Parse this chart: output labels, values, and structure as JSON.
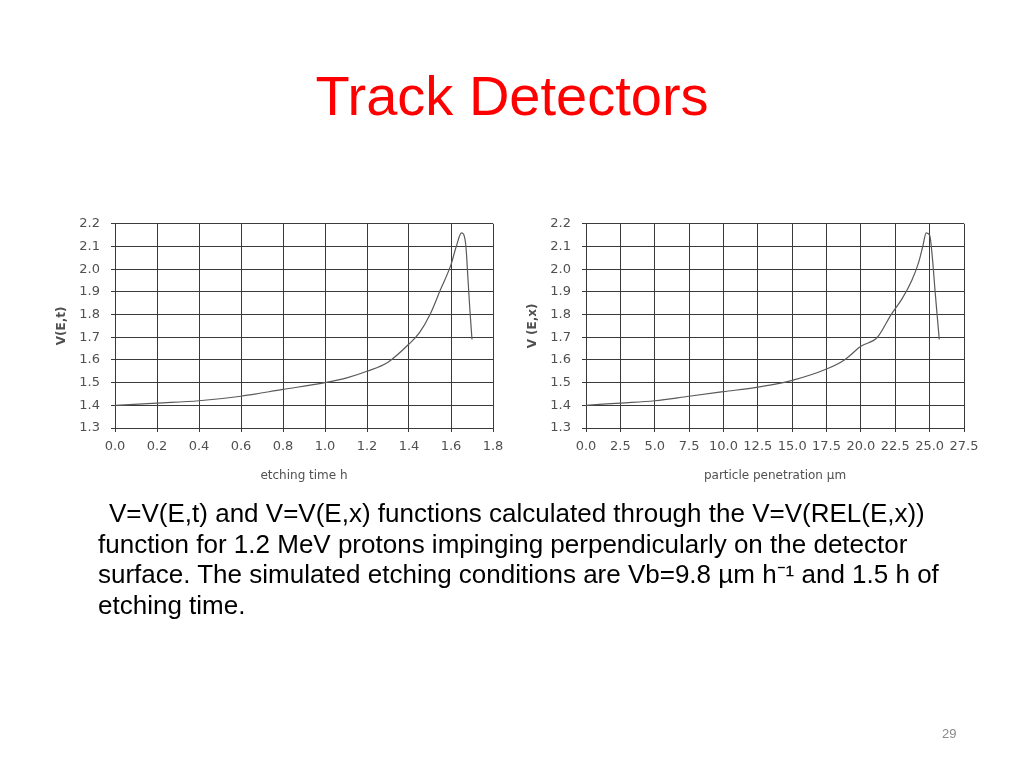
{
  "chart_data": [
    {
      "type": "other",
      "title": "Track Detectors"
    },
    {
      "type": "line",
      "xlabel": "etching time h",
      "ylabel": "V(E,t)",
      "x": [
        0,
        0.2,
        0.4,
        0.6,
        0.8,
        1.0,
        1.1,
        1.2,
        1.3,
        1.4,
        1.45,
        1.5,
        1.55,
        1.6,
        1.625,
        1.65,
        1.67,
        1.68,
        1.69,
        1.7
      ],
      "values": [
        1.4,
        1.41,
        1.42,
        1.44,
        1.47,
        1.5,
        1.52,
        1.55,
        1.59,
        1.67,
        1.72,
        1.8,
        1.91,
        2.02,
        2.1,
        2.16,
        2.11,
        1.97,
        1.82,
        1.69
      ],
      "color": "#5a5a5a",
      "xlim": [
        0,
        1.8
      ],
      "xticks": [
        {
          "value": 0,
          "label": "0.0"
        },
        0.2,
        0.4,
        0.6,
        0.8,
        {
          "value": 1,
          "label": "1.0"
        },
        1.2,
        1.4,
        1.6,
        1.8
      ],
      "ylim": [
        1.3,
        2.2
      ],
      "yticks": [
        1.3,
        1.4,
        1.5,
        1.6,
        1.7,
        1.8,
        1.9,
        {
          "value": 2,
          "label": "2.0"
        },
        2.1,
        2.2
      ],
      "grid": true,
      "marker": "none"
    },
    {
      "type": "line",
      "xlabel": "particle penetration µm",
      "ylabel": "V (E,x)",
      "x": [
        0,
        2.5,
        5,
        7.5,
        10,
        12.5,
        15,
        17.5,
        18.8,
        20,
        21.2,
        22.2,
        23,
        23.7,
        24.2,
        24.5,
        24.75,
        25,
        25.2,
        25.4,
        25.6,
        25.7
      ],
      "values": [
        1.4,
        1.41,
        1.42,
        1.44,
        1.46,
        1.48,
        1.51,
        1.56,
        1.6,
        1.66,
        1.7,
        1.8,
        1.87,
        1.95,
        2.03,
        2.1,
        2.16,
        2.15,
        2.05,
        1.9,
        1.76,
        1.69
      ],
      "color": "#5a5a5a",
      "xlim": [
        0,
        27.5
      ],
      "xticks": [
        {
          "value": 0,
          "label": "0.0"
        },
        2.5,
        {
          "value": 5,
          "label": "5.0"
        },
        7.5,
        {
          "value": 10,
          "label": "10.0"
        },
        12.5,
        {
          "value": 15,
          "label": "15.0"
        },
        17.5,
        {
          "value": 20,
          "label": "20.0"
        },
        22.5,
        {
          "value": 25,
          "label": "25.0"
        },
        27.5
      ],
      "ylim": [
        1.3,
        2.2
      ],
      "yticks": [
        1.3,
        1.4,
        1.5,
        1.6,
        1.7,
        1.8,
        1.9,
        {
          "value": 2,
          "label": "2.0"
        },
        2.1,
        2.2
      ],
      "grid": true,
      "marker": "none"
    },
    {
      "type": "other",
      "annotations": [
        "V=V(E,t) and V=V(E,x) functions calculated through the V=V(REL(E,x)) function for 1.2 MeV protons impinging perpendicularly on the detector surface. The simulated etching conditions are Vb=9.8 µm h⁻¹ and 1.5 h of etching time.",
        "29"
      ]
    }
  ]
}
